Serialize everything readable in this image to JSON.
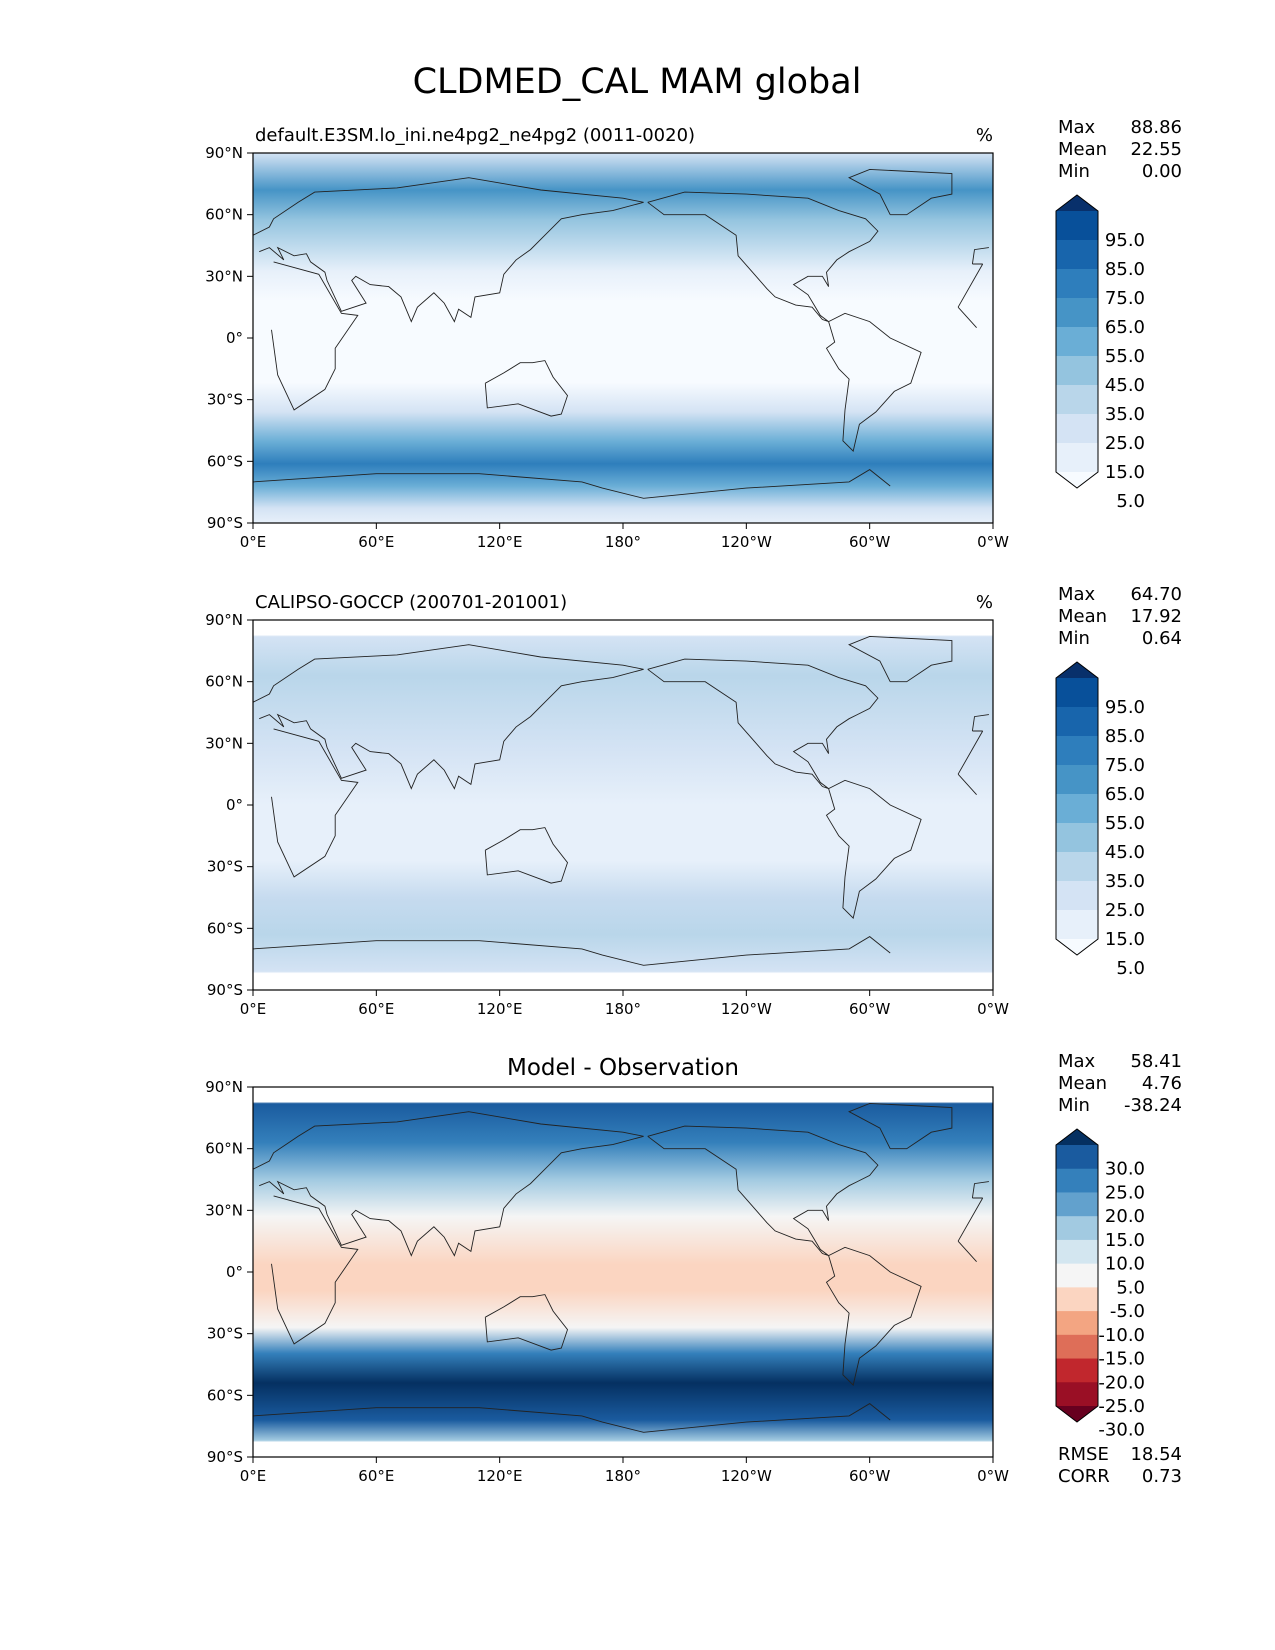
{
  "figure_title": "CLDMED_CAL MAM global",
  "chart_data": [
    {
      "type": "heatmap",
      "title": "default.E3SM.lo_ini.ne4pg2_ne4pg2 (0011-0020)",
      "units": "%",
      "stats": {
        "Max": "88.86",
        "Mean": "22.55",
        "Min": "0.00"
      },
      "x_ticks": [
        "0°E",
        "60°E",
        "120°E",
        "180°",
        "120°W",
        "60°W",
        "0°W"
      ],
      "y_ticks": [
        "90°N",
        "60°N",
        "30°N",
        "0°",
        "30°S",
        "60°S",
        "90°S"
      ],
      "colorbar": {
        "labels": [
          "95.0",
          "85.0",
          "75.0",
          "65.0",
          "55.0",
          "45.0",
          "35.0",
          "25.0",
          "15.0",
          "5.0"
        ],
        "colors": [
          "#08306b",
          "#08509a",
          "#1865ac",
          "#2e7ebc",
          "#4694c6",
          "#6aaed6",
          "#94c4df",
          "#b9d6ea",
          "#d4e3f4",
          "#e7f0fa",
          "#f7fbff"
        ]
      },
      "footer": null
    },
    {
      "type": "heatmap",
      "title": "CALIPSO-GOCCP (200701-201001)",
      "units": "%",
      "stats": {
        "Max": "64.70",
        "Mean": "17.92",
        "Min": "0.64"
      },
      "x_ticks": [
        "0°E",
        "60°E",
        "120°E",
        "180°",
        "120°W",
        "60°W",
        "0°W"
      ],
      "y_ticks": [
        "90°N",
        "60°N",
        "30°N",
        "0°",
        "30°S",
        "60°S",
        "90°S"
      ],
      "colorbar": {
        "labels": [
          "95.0",
          "85.0",
          "75.0",
          "65.0",
          "55.0",
          "45.0",
          "35.0",
          "25.0",
          "15.0",
          "5.0"
        ],
        "colors": [
          "#08306b",
          "#08509a",
          "#1865ac",
          "#2e7ebc",
          "#4694c6",
          "#6aaed6",
          "#94c4df",
          "#b9d6ea",
          "#d4e3f4",
          "#e7f0fa",
          "#f7fbff"
        ]
      },
      "footer": null
    },
    {
      "type": "heatmap",
      "title": "Model - Observation",
      "units": "",
      "stats": {
        "Max": "58.41",
        "Mean": "4.76",
        "Min": "-38.24"
      },
      "x_ticks": [
        "0°E",
        "60°E",
        "120°E",
        "180°",
        "120°W",
        "60°W",
        "0°W"
      ],
      "y_ticks": [
        "90°N",
        "60°N",
        "30°N",
        "0°",
        "30°S",
        "60°S",
        "90°S"
      ],
      "colorbar": {
        "labels": [
          "30.0",
          "25.0",
          "20.0",
          "15.0",
          "10.0",
          "5.0",
          "-5.0",
          "-10.0",
          "-15.0",
          "-20.0",
          "-25.0",
          "-30.0"
        ],
        "colors": [
          "#053061",
          "#1a5b9f",
          "#3480bb",
          "#62a1cd",
          "#a2cae1",
          "#d3e6f0",
          "#f5f5f5",
          "#fbd5c1",
          "#f3a582",
          "#de6e58",
          "#c1272d",
          "#9a0f25",
          "#67001f"
        ]
      },
      "footer": {
        "RMSE": "18.54",
        "CORR": "0.73"
      }
    }
  ]
}
